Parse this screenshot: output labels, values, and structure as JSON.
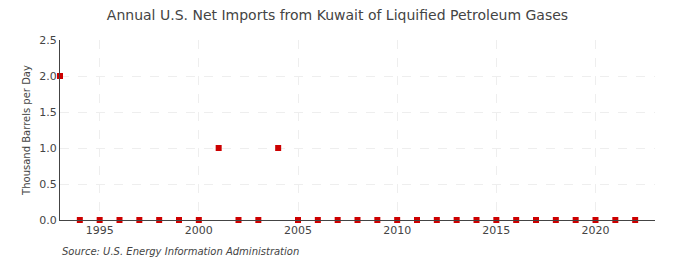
{
  "chart_data": {
    "type": "scatter",
    "title": "Annual U.S. Net Imports from Kuwait of Liquified Petroleum Gases",
    "ylabel": "Thousand Barrels per Day",
    "annotations": [
      "Source: U.S. Energy Information Administration"
    ],
    "x": [
      1993,
      1994,
      1995,
      1996,
      1997,
      1998,
      1999,
      2000,
      2001,
      2002,
      2003,
      2004,
      2005,
      2006,
      2007,
      2008,
      2009,
      2010,
      2011,
      2012,
      2013,
      2014,
      2015,
      2016,
      2017,
      2018,
      2019,
      2020,
      2021,
      2022
    ],
    "values": [
      2.0,
      0.0,
      0.0,
      0.0,
      0.0,
      0.0,
      0.0,
      0.0,
      1.0,
      0.0,
      0.0,
      1.0,
      0.0,
      0.0,
      0.0,
      0.0,
      0.0,
      0.0,
      0.0,
      0.0,
      0.0,
      0.0,
      0.0,
      0.0,
      0.0,
      0.0,
      0.0,
      0.0,
      0.0,
      0.0
    ],
    "color": "#cc0000",
    "marker": "square",
    "xlim": [
      1993,
      2023
    ],
    "ylim": [
      0.0,
      2.5
    ],
    "xticks": [
      1995,
      2000,
      2005,
      2010,
      2015,
      2020
    ],
    "yticks": [
      {
        "value": 0.0,
        "label": "0.0"
      },
      0.5,
      {
        "value": 1.0,
        "label": "1.0"
      },
      1.5,
      {
        "value": 2.0,
        "label": "2.0"
      },
      2.5
    ],
    "grid": true
  }
}
